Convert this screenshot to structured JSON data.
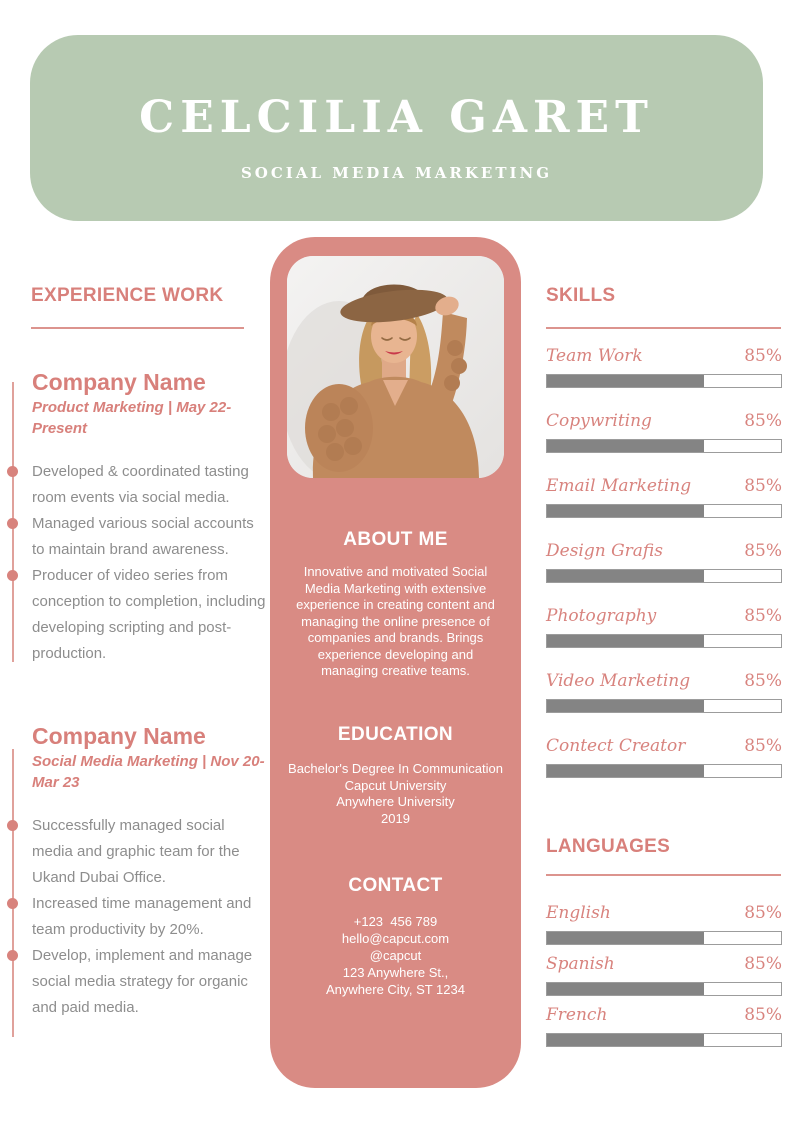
{
  "colors": {
    "header_green": "#b7cab2",
    "card_pink": "#d98b84",
    "accent_pink": "#d8807b",
    "body_gray": "#8d8d8d",
    "bar_fill_gray": "#848484",
    "bar_border_gray": "#9c9c9c"
  },
  "header": {
    "name": "CELCILIA GARET",
    "role": "SOCIAL MEDIA MARKETING"
  },
  "experience": {
    "title": "EXPERIENCE WORK",
    "jobs": [
      {
        "company": "Company Name",
        "meta": "Product Marketing | May 22-Present",
        "bullets": [
          "Developed & coordinated tasting room events via social media.",
          "Managed various social accounts to maintain brand awareness.",
          "Producer of video series from conception to completion, including developing scripting and post-production."
        ]
      },
      {
        "company": "Company Name",
        "meta": "Social Media Marketing | Nov 20-Mar 23",
        "bullets": [
          "Successfully managed social media and graphic team for the Ukand Dubai Office.",
          "Increased time management and team productivity by 20%.",
          "Develop, implement and manage social media strategy for organic and paid media."
        ]
      }
    ]
  },
  "profile": {
    "about": {
      "title": "ABOUT ME",
      "text": "Innovative and motivated Social Media Marketing with extensive experience in creating content and managing the online presence of companies and brands. Brings experience developing and managing creative teams."
    },
    "education": {
      "title": "EDUCATION",
      "lines": [
        "Bachelor's Degree In Communication",
        "Capcut University",
        "Anywhere University",
        "2019"
      ]
    },
    "contact": {
      "title": "CONTACT",
      "lines": [
        "+123  456 789",
        "hello@capcut.com",
        "@capcut",
        "123 Anywhere St.,",
        "Anywhere City, ST 1234"
      ]
    }
  },
  "skills": {
    "title": "SKILLS",
    "items": [
      {
        "label": "Team Work",
        "percent": "85%",
        "fill": 67
      },
      {
        "label": "Copywriting",
        "percent": "85%",
        "fill": 67
      },
      {
        "label": "Email Marketing",
        "percent": "85%",
        "fill": 67
      },
      {
        "label": "Design Grafis",
        "percent": "85%",
        "fill": 67
      },
      {
        "label": "Photography",
        "percent": "85%",
        "fill": 67
      },
      {
        "label": "Video Marketing",
        "percent": "85%",
        "fill": 67
      },
      {
        "label": "Contect Creator",
        "percent": "85%",
        "fill": 67
      }
    ]
  },
  "languages": {
    "title": "LANGUAGES",
    "items": [
      {
        "label": "English",
        "percent": "85%",
        "fill": 67
      },
      {
        "label": "Spanish",
        "percent": "85%",
        "fill": 67
      },
      {
        "label": "French",
        "percent": "85%",
        "fill": 67
      }
    ]
  }
}
